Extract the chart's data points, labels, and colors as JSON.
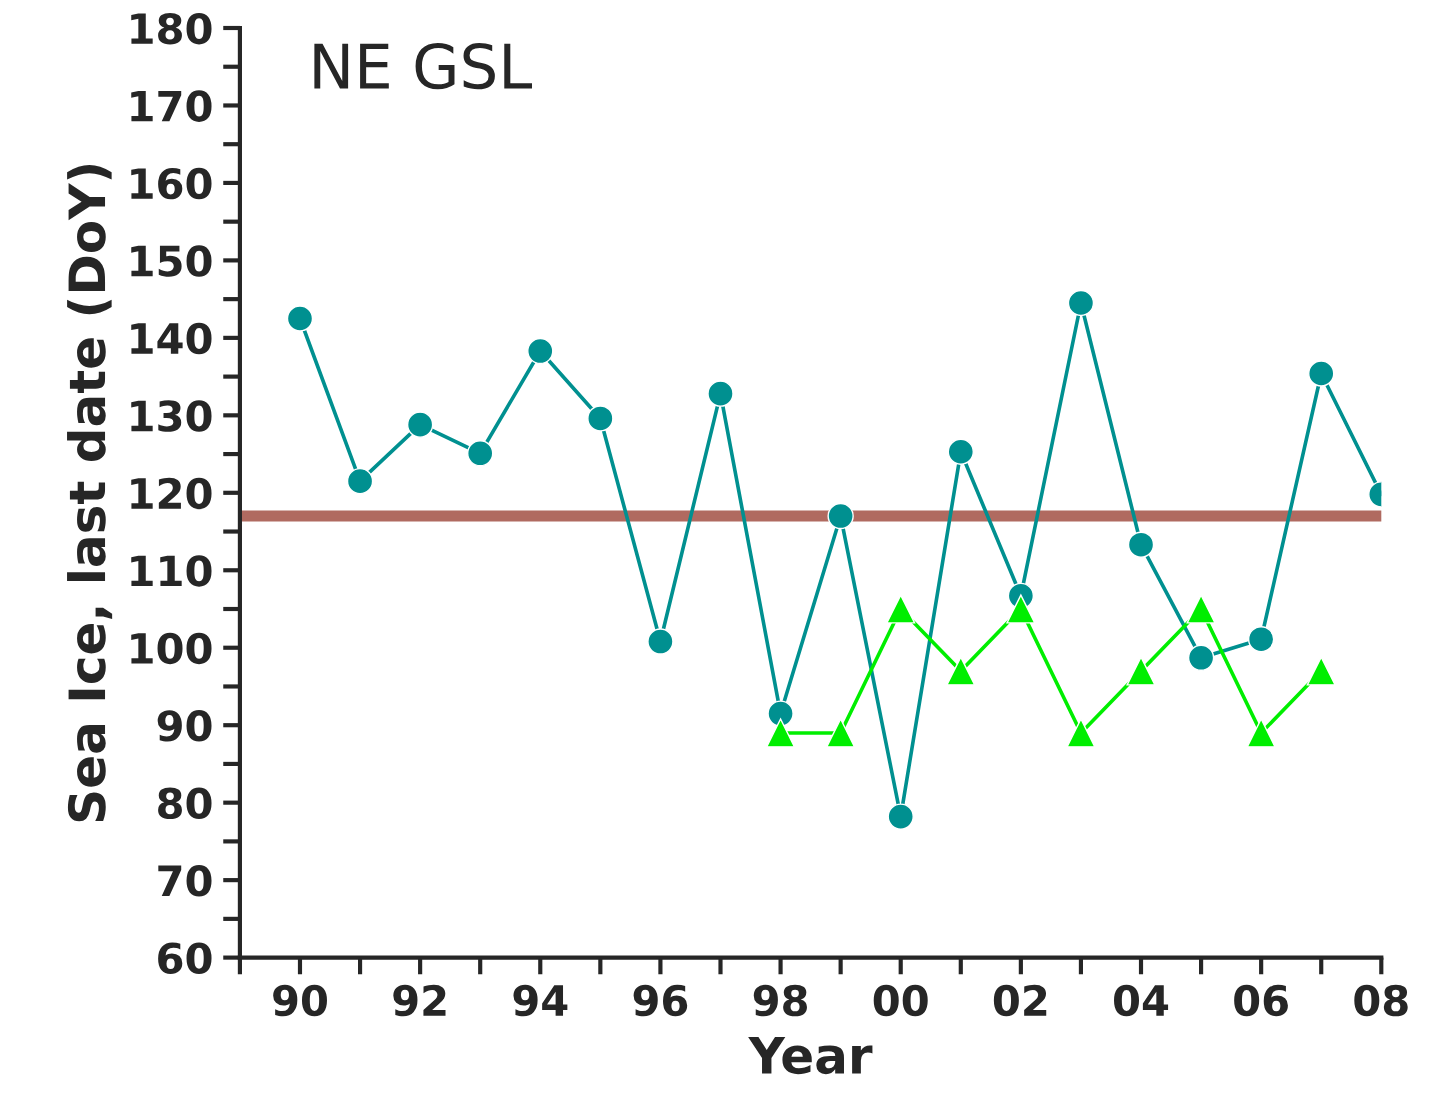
{
  "chart_data": {
    "type": "line",
    "title": "NE GSL",
    "xlabel": "Year",
    "ylabel": "Sea Ice, last date (DoY)",
    "xlim": [
      1989,
      2008
    ],
    "xticks": [
      {
        "value": 1989,
        "label": null
      },
      {
        "value": 1990,
        "label": "90"
      },
      {
        "value": 1991,
        "label": null
      },
      {
        "value": 1992,
        "label": "92"
      },
      {
        "value": 1993,
        "label": null
      },
      {
        "value": 1994,
        "label": "94"
      },
      {
        "value": 1995,
        "label": null
      },
      {
        "value": 1996,
        "label": "96"
      },
      {
        "value": 1997,
        "label": null
      },
      {
        "value": 1998,
        "label": "98"
      },
      {
        "value": 1999,
        "label": null
      },
      {
        "value": 2000,
        "label": "00"
      },
      {
        "value": 2001,
        "label": null
      },
      {
        "value": 2002,
        "label": "02"
      },
      {
        "value": 2003,
        "label": null
      },
      {
        "value": 2004,
        "label": "04"
      },
      {
        "value": 2005,
        "label": null
      },
      {
        "value": 2006,
        "label": "06"
      },
      {
        "value": 2007,
        "label": null
      },
      {
        "value": 2008,
        "label": "08"
      }
    ],
    "ylim": [
      60,
      180
    ],
    "yticks": [
      60,
      {
        "value": 65,
        "label": null
      },
      70,
      {
        "value": 75,
        "label": null
      },
      80,
      {
        "value": 85,
        "label": null
      },
      90,
      {
        "value": 95,
        "label": null
      },
      100,
      {
        "value": 105,
        "label": null
      },
      110,
      {
        "value": 115,
        "label": null
      },
      120,
      {
        "value": 125,
        "label": null
      },
      130,
      {
        "value": 135,
        "label": null
      },
      140,
      {
        "value": 145,
        "label": null
      },
      150,
      {
        "value": 155,
        "label": null
      },
      160,
      {
        "value": 165,
        "label": null
      },
      170,
      {
        "value": 175,
        "label": null
      },
      180
    ],
    "grid": false,
    "legend": false,
    "series": [
      {
        "color": "#009090",
        "marker": "circle",
        "x": [
          1990,
          1991,
          1992,
          1993,
          1994,
          1995,
          1996,
          1997,
          1998,
          1999,
          2000,
          2001,
          2002,
          2003,
          2004,
          2005,
          2006,
          2007,
          2008
        ],
        "values": [
          142.5,
          121.5,
          128.8,
          125.1,
          138.3,
          129.6,
          100.8,
          132.8,
          91.5,
          117.0,
          78.2,
          125.3,
          106.7,
          144.5,
          113.3,
          98.7,
          101.1,
          135.4,
          119.8
        ]
      },
      {
        "color": "#00ee00",
        "marker": "triangle",
        "x": [
          1998,
          1999,
          2000,
          2001,
          2002,
          2003,
          2004,
          2005,
          2006,
          2007
        ],
        "values": [
          89,
          89,
          105,
          97,
          105,
          89,
          97,
          105,
          89,
          97
        ]
      }
    ],
    "ref_lines": [
      {
        "axis": "y",
        "value": 117,
        "color": "#b06a60"
      }
    ]
  }
}
